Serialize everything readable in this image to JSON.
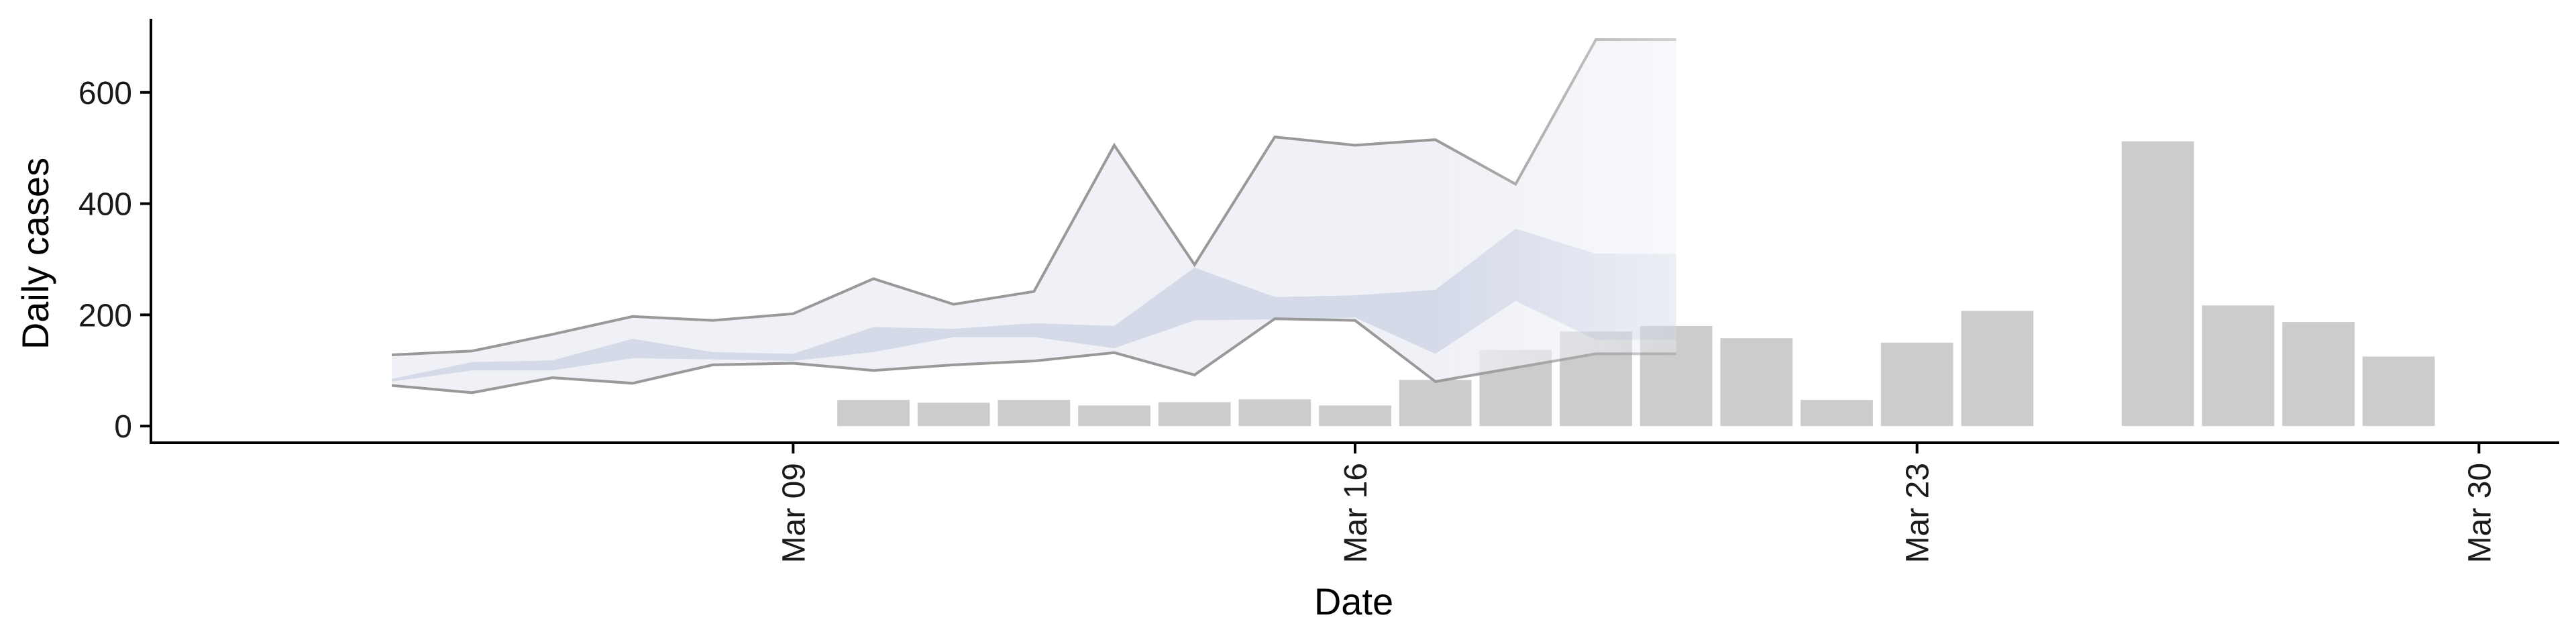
{
  "chart_data": {
    "type": "bar",
    "xlabel": "Date",
    "ylabel": "Daily cases",
    "x_axis": {
      "type": "date",
      "range": [
        "2020-03-01",
        "2020-03-31"
      ],
      "ticks": [
        {
          "date": "2020-03-09",
          "label": "Mar 09"
        },
        {
          "date": "2020-03-16",
          "label": "Mar 16"
        },
        {
          "date": "2020-03-23",
          "label": "Mar 23"
        },
        {
          "date": "2020-03-30",
          "label": "Mar 30"
        }
      ]
    },
    "y_axis": {
      "ylim": [
        -30,
        730
      ],
      "ticks": [
        0,
        200,
        400,
        600
      ]
    },
    "grid": false,
    "legend": "none",
    "colors": {
      "bars": "#cccccc",
      "outer_band": "#eceef5",
      "inner_band": "#d3d8e8",
      "bound_line": "#999999",
      "axis": "#000000"
    },
    "bars": [
      {
        "date": "2020-03-10",
        "value": 47
      },
      {
        "date": "2020-03-11",
        "value": 42
      },
      {
        "date": "2020-03-12",
        "value": 47
      },
      {
        "date": "2020-03-13",
        "value": 37
      },
      {
        "date": "2020-03-14",
        "value": 43
      },
      {
        "date": "2020-03-15",
        "value": 48
      },
      {
        "date": "2020-03-16",
        "value": 37
      },
      {
        "date": "2020-03-17",
        "value": 83
      },
      {
        "date": "2020-03-18",
        "value": 137
      },
      {
        "date": "2020-03-19",
        "value": 170
      },
      {
        "date": "2020-03-20",
        "value": 180
      },
      {
        "date": "2020-03-21",
        "value": 158
      },
      {
        "date": "2020-03-22",
        "value": 47
      },
      {
        "date": "2020-03-23",
        "value": 150
      },
      {
        "date": "2020-03-24",
        "value": 207
      },
      {
        "date": "2020-03-26",
        "value": 512
      },
      {
        "date": "2020-03-27",
        "value": 217
      },
      {
        "date": "2020-03-28",
        "value": 187
      },
      {
        "date": "2020-03-29",
        "value": 125
      }
    ],
    "band": {
      "dates": [
        "2020-03-04",
        "2020-03-05",
        "2020-03-06",
        "2020-03-07",
        "2020-03-08",
        "2020-03-09",
        "2020-03-10",
        "2020-03-11",
        "2020-03-12",
        "2020-03-13",
        "2020-03-14",
        "2020-03-15",
        "2020-03-16",
        "2020-03-17",
        "2020-03-18",
        "2020-03-19",
        "2020-03-20"
      ],
      "outer_upper": [
        128,
        135,
        165,
        197,
        190,
        202,
        265,
        219,
        242,
        505,
        290,
        520,
        505,
        515,
        435,
        695,
        695
      ],
      "outer_lower": [
        73,
        60,
        87,
        77,
        110,
        113,
        100,
        110,
        117,
        132,
        92,
        193,
        190,
        80,
        105,
        130,
        130
      ],
      "inner_upper": [
        85,
        115,
        118,
        157,
        133,
        130,
        178,
        175,
        185,
        180,
        285,
        232,
        235,
        245,
        355,
        310,
        310
      ],
      "inner_lower": [
        80,
        100,
        100,
        122,
        120,
        117,
        133,
        160,
        160,
        140,
        190,
        192,
        195,
        130,
        225,
        155,
        155
      ],
      "fade_start": "2020-03-17"
    }
  }
}
